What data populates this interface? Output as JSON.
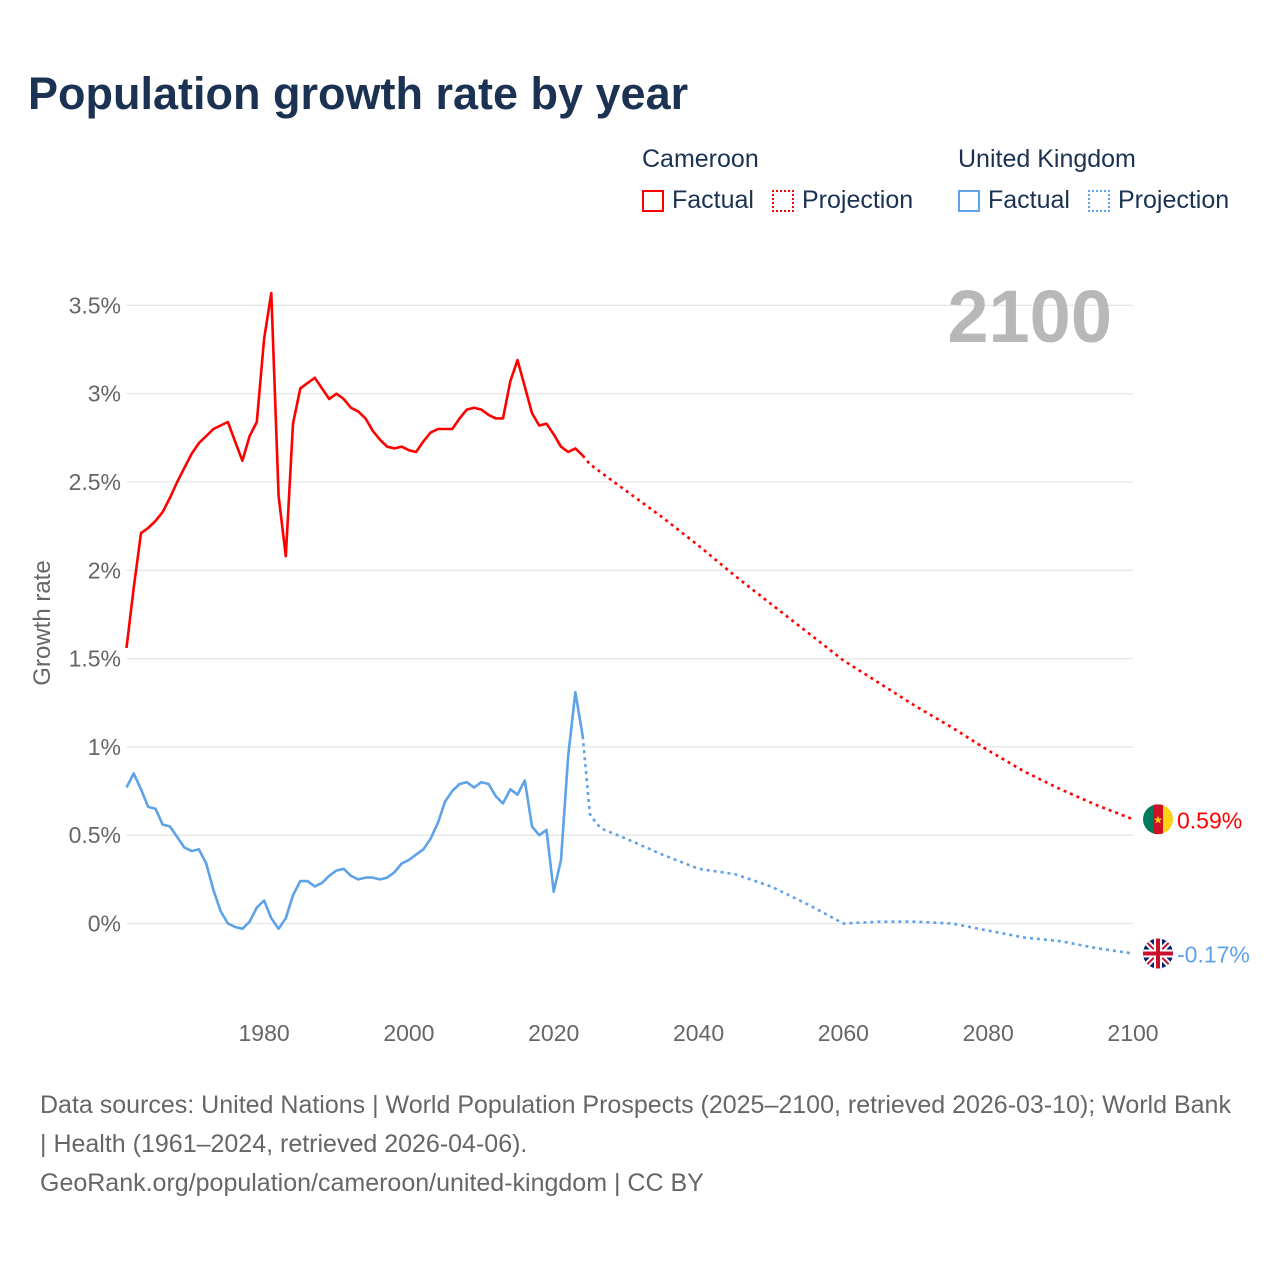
{
  "title": "Population growth rate by year",
  "legend": [
    {
      "country": "Cameroon",
      "factual": "Factual",
      "projection": "Projection",
      "color": "#ff0000"
    },
    {
      "country": "United Kingdom",
      "factual": "Factual",
      "projection": "Projection",
      "color": "#5ea2e8"
    }
  ],
  "year_label": "2100",
  "footer": {
    "sources": "Data sources: United Nations | World Population Prospects (2025–2100, retrieved 2026-03-10); World Bank | Health (1961–2024, retrieved 2026-04-06).",
    "link": "GeoRank.org/population/cameroon/united-kingdom | CC BY"
  },
  "chart_data": {
    "type": "line",
    "ylabel": "Growth rate",
    "xlabel": "",
    "xlim": [
      1961,
      2100
    ],
    "ylim": [
      -0.3,
      3.7
    ],
    "xticks": [
      1980,
      2000,
      2020,
      2040,
      2060,
      2080,
      2100
    ],
    "xtick_labels": [
      "1980",
      "2000",
      "2020",
      "2040",
      "2060",
      "2080",
      "2100"
    ],
    "yticks": [
      0,
      0.5,
      1,
      1.5,
      2,
      2.5,
      3,
      3.5
    ],
    "ytick_labels": [
      "0%",
      "0.5%",
      "1%",
      "1.5%",
      "2%",
      "2.5%",
      "3%",
      "3.5%"
    ],
    "grid": true,
    "series": [
      {
        "name": "Cameroon",
        "color": "#ff0000",
        "end_label": "0.59%",
        "factual": {
          "x": [
            1961,
            1962,
            1963,
            1964,
            1965,
            1966,
            1967,
            1968,
            1969,
            1970,
            1971,
            1972,
            1973,
            1974,
            1975,
            1976,
            1977,
            1978,
            1979,
            1980,
            1981,
            1982,
            1983,
            1984,
            1985,
            1986,
            1987,
            1988,
            1989,
            1990,
            1991,
            1992,
            1993,
            1994,
            1995,
            1996,
            1997,
            1998,
            1999,
            2000,
            2001,
            2002,
            2003,
            2004,
            2005,
            2006,
            2007,
            2008,
            2009,
            2010,
            2011,
            2012,
            2013,
            2014,
            2015,
            2016,
            2017,
            2018,
            2019,
            2020,
            2021,
            2022,
            2023,
            2024
          ],
          "y": [
            1.56,
            1.9,
            2.21,
            2.24,
            2.28,
            2.33,
            2.41,
            2.5,
            2.58,
            2.66,
            2.72,
            2.76,
            2.8,
            2.82,
            2.84,
            2.73,
            2.62,
            2.76,
            2.84,
            3.31,
            3.57,
            2.42,
            2.08,
            2.83,
            3.03,
            3.06,
            3.09,
            3.03,
            2.97,
            3.0,
            2.97,
            2.92,
            2.9,
            2.86,
            2.79,
            2.74,
            2.7,
            2.69,
            2.7,
            2.68,
            2.67,
            2.73,
            2.78,
            2.8,
            2.8,
            2.8,
            2.86,
            2.91,
            2.92,
            2.91,
            2.88,
            2.86,
            2.86,
            3.07,
            3.19,
            3.04,
            2.89,
            2.82,
            2.83,
            2.77,
            2.7,
            2.67,
            2.69,
            2.65
          ]
        },
        "projection": {
          "x": [
            2024,
            2025,
            2030,
            2035,
            2040,
            2045,
            2050,
            2055,
            2060,
            2065,
            2070,
            2075,
            2080,
            2085,
            2090,
            2095,
            2100
          ],
          "y": [
            2.65,
            2.6,
            2.45,
            2.3,
            2.14,
            1.97,
            1.81,
            1.65,
            1.49,
            1.36,
            1.23,
            1.11,
            0.98,
            0.86,
            0.76,
            0.67,
            0.59
          ]
        }
      },
      {
        "name": "United Kingdom",
        "color": "#5ea2e8",
        "end_label": "-0.17%",
        "factual": {
          "x": [
            1961,
            1962,
            1963,
            1964,
            1965,
            1966,
            1967,
            1968,
            1969,
            1970,
            1971,
            1972,
            1973,
            1974,
            1975,
            1976,
            1977,
            1978,
            1979,
            1980,
            1981,
            1982,
            1983,
            1984,
            1985,
            1986,
            1987,
            1988,
            1989,
            1990,
            1991,
            1992,
            1993,
            1994,
            1995,
            1996,
            1997,
            1998,
            1999,
            2000,
            2001,
            2002,
            2003,
            2004,
            2005,
            2006,
            2007,
            2008,
            2009,
            2010,
            2011,
            2012,
            2013,
            2014,
            2015,
            2016,
            2017,
            2018,
            2019,
            2020,
            2021,
            2022,
            2023,
            2024
          ],
          "y": [
            0.77,
            0.85,
            0.76,
            0.66,
            0.65,
            0.56,
            0.55,
            0.49,
            0.43,
            0.41,
            0.42,
            0.34,
            0.19,
            0.07,
            0.0,
            -0.02,
            -0.03,
            0.01,
            0.09,
            0.13,
            0.03,
            -0.03,
            0.03,
            0.16,
            0.24,
            0.24,
            0.21,
            0.23,
            0.27,
            0.3,
            0.31,
            0.27,
            0.25,
            0.26,
            0.26,
            0.25,
            0.26,
            0.29,
            0.34,
            0.36,
            0.39,
            0.42,
            0.48,
            0.57,
            0.69,
            0.75,
            0.79,
            0.8,
            0.77,
            0.8,
            0.79,
            0.72,
            0.68,
            0.76,
            0.73,
            0.81,
            0.55,
            0.5,
            0.53,
            0.18,
            0.36,
            0.95,
            1.31,
            1.06
          ]
        },
        "projection": {
          "x": [
            2024,
            2025,
            2026,
            2027,
            2030,
            2035,
            2040,
            2045,
            2050,
            2055,
            2060,
            2065,
            2070,
            2075,
            2080,
            2085,
            2090,
            2095,
            2100
          ],
          "y": [
            1.06,
            0.62,
            0.56,
            0.53,
            0.48,
            0.39,
            0.31,
            0.28,
            0.21,
            0.11,
            0.0,
            0.01,
            0.01,
            0.0,
            -0.04,
            -0.08,
            -0.1,
            -0.14,
            -0.17
          ]
        }
      }
    ]
  }
}
